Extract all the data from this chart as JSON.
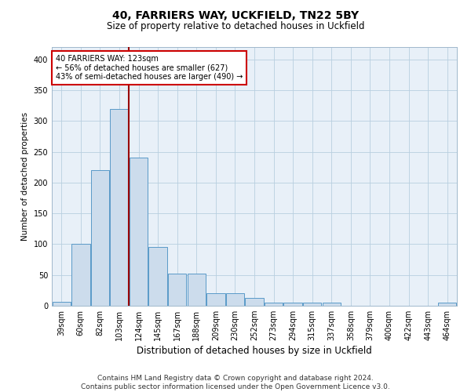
{
  "title1": "40, FARRIERS WAY, UCKFIELD, TN22 5BY",
  "title2": "Size of property relative to detached houses in Uckfield",
  "xlabel": "Distribution of detached houses by size in Uckfield",
  "ylabel": "Number of detached properties",
  "footnote": "Contains HM Land Registry data © Crown copyright and database right 2024.\nContains public sector information licensed under the Open Government Licence v3.0.",
  "bin_labels": [
    "39sqm",
    "60sqm",
    "82sqm",
    "103sqm",
    "124sqm",
    "145sqm",
    "167sqm",
    "188sqm",
    "209sqm",
    "230sqm",
    "252sqm",
    "273sqm",
    "294sqm",
    "315sqm",
    "337sqm",
    "358sqm",
    "379sqm",
    "400sqm",
    "422sqm",
    "443sqm",
    "464sqm"
  ],
  "bar_values": [
    7,
    100,
    220,
    320,
    240,
    95,
    52,
    52,
    20,
    20,
    13,
    5,
    5,
    5,
    5,
    0,
    0,
    0,
    0,
    0,
    5
  ],
  "bar_color": "#ccdcec",
  "bar_edge_color": "#5a9ac8",
  "subject_line_color": "#990000",
  "annotation_text": "40 FARRIERS WAY: 123sqm\n← 56% of detached houses are smaller (627)\n43% of semi-detached houses are larger (490) →",
  "annotation_box_facecolor": "#ffffff",
  "annotation_box_edgecolor": "#cc0000",
  "ylim": [
    0,
    420
  ],
  "yticks": [
    0,
    50,
    100,
    150,
    200,
    250,
    300,
    350,
    400
  ],
  "grid_color": "#b8cfe0",
  "bg_color": "#e8f0f8",
  "subject_bin_idx": 4,
  "title1_fontsize": 10,
  "title2_fontsize": 8.5,
  "xlabel_fontsize": 8.5,
  "ylabel_fontsize": 7.5,
  "tick_fontsize": 7,
  "footnote_fontsize": 6.5
}
